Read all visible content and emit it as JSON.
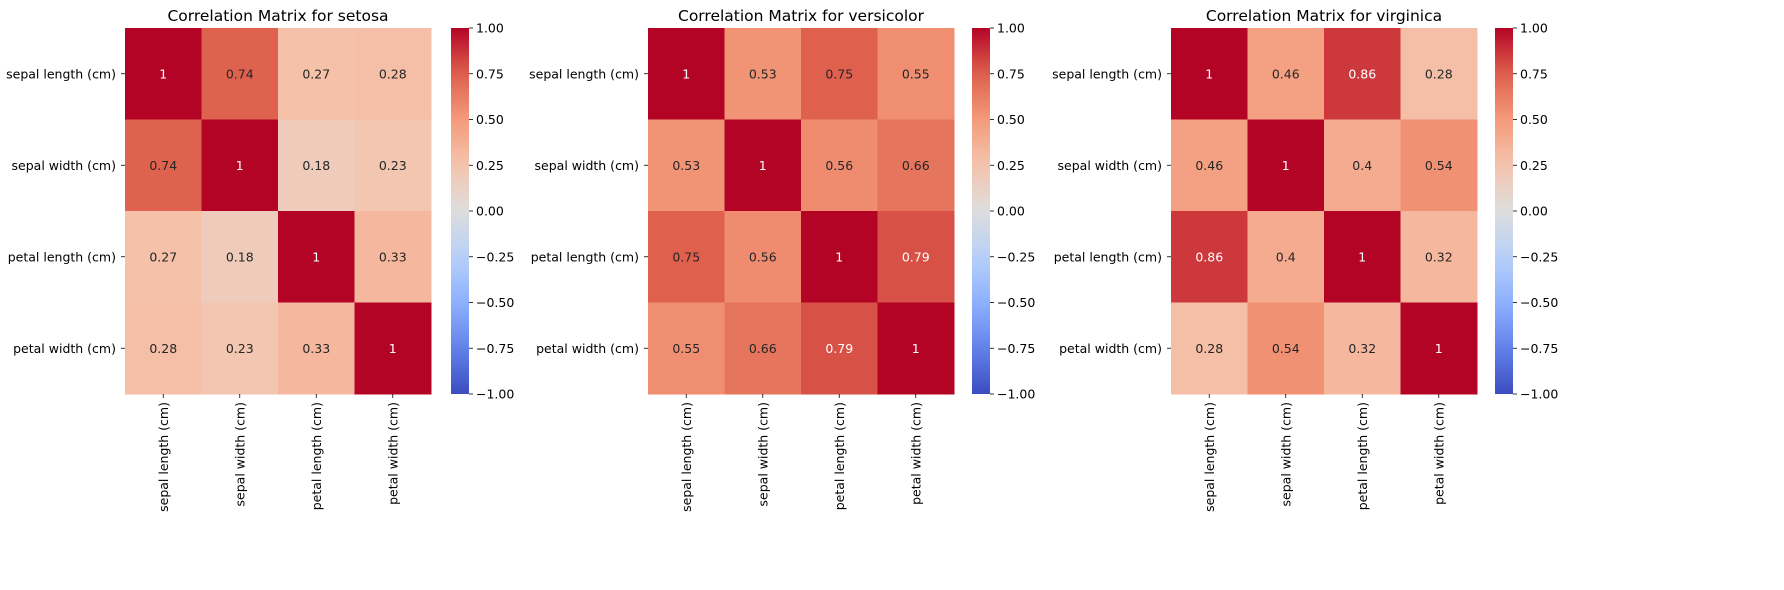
{
  "figure": {
    "colormap": "coolwarm",
    "background": "#ffffff"
  },
  "chart_data": [
    {
      "type": "heatmap",
      "title": "Correlation Matrix for setosa",
      "x_labels": [
        "sepal length (cm)",
        "sepal width (cm)",
        "petal length (cm)",
        "petal width (cm)"
      ],
      "y_labels": [
        "sepal length (cm)",
        "sepal width (cm)",
        "petal length (cm)",
        "petal width (cm)"
      ],
      "values": [
        [
          1.0,
          0.74,
          0.27,
          0.28
        ],
        [
          0.74,
          1.0,
          0.18,
          0.23
        ],
        [
          0.27,
          0.18,
          1.0,
          0.33
        ],
        [
          0.28,
          0.23,
          0.33,
          1.0
        ]
      ],
      "cell_labels": [
        [
          "1",
          "0.74",
          "0.27",
          "0.28"
        ],
        [
          "0.74",
          "1",
          "0.18",
          "0.23"
        ],
        [
          "0.27",
          "0.18",
          "1",
          "0.33"
        ],
        [
          "0.28",
          "0.23",
          "0.33",
          "1"
        ]
      ],
      "colorbar": {
        "range": [
          -1.0,
          1.0
        ],
        "ticks": [
          "1.00",
          "0.75",
          "0.50",
          "0.25",
          "0.00",
          "−0.25",
          "−0.50",
          "−0.75",
          "−1.00"
        ]
      }
    },
    {
      "type": "heatmap",
      "title": "Correlation Matrix for versicolor",
      "x_labels": [
        "sepal length (cm)",
        "sepal width (cm)",
        "petal length (cm)",
        "petal width (cm)"
      ],
      "y_labels": [
        "sepal length (cm)",
        "sepal width (cm)",
        "petal length (cm)",
        "petal width (cm)"
      ],
      "values": [
        [
          1.0,
          0.53,
          0.75,
          0.55
        ],
        [
          0.53,
          1.0,
          0.56,
          0.66
        ],
        [
          0.75,
          0.56,
          1.0,
          0.79
        ],
        [
          0.55,
          0.66,
          0.79,
          1.0
        ]
      ],
      "cell_labels": [
        [
          "1",
          "0.53",
          "0.75",
          "0.55"
        ],
        [
          "0.53",
          "1",
          "0.56",
          "0.66"
        ],
        [
          "0.75",
          "0.56",
          "1",
          "0.79"
        ],
        [
          "0.55",
          "0.66",
          "0.79",
          "1"
        ]
      ],
      "colorbar": {
        "range": [
          -1.0,
          1.0
        ],
        "ticks": [
          "1.00",
          "0.75",
          "0.50",
          "0.25",
          "0.00",
          "−0.25",
          "−0.50",
          "−0.75",
          "−1.00"
        ]
      }
    },
    {
      "type": "heatmap",
      "title": "Correlation Matrix for virginica",
      "x_labels": [
        "sepal length (cm)",
        "sepal width (cm)",
        "petal length (cm)",
        "petal width (cm)"
      ],
      "y_labels": [
        "sepal length (cm)",
        "sepal width (cm)",
        "petal length (cm)",
        "petal width (cm)"
      ],
      "values": [
        [
          1.0,
          0.46,
          0.86,
          0.28
        ],
        [
          0.46,
          1.0,
          0.4,
          0.54
        ],
        [
          0.86,
          0.4,
          1.0,
          0.32
        ],
        [
          0.28,
          0.54,
          0.32,
          1.0
        ]
      ],
      "cell_labels": [
        [
          "1",
          "0.46",
          "0.86",
          "0.28"
        ],
        [
          "0.46",
          "1",
          "0.4",
          "0.54"
        ],
        [
          "0.86",
          "0.4",
          "1",
          "0.32"
        ],
        [
          "0.28",
          "0.54",
          "0.32",
          "1"
        ]
      ],
      "colorbar": {
        "range": [
          -1.0,
          1.0
        ],
        "ticks": [
          "1.00",
          "0.75",
          "0.50",
          "0.25",
          "0.00",
          "−0.25",
          "−0.50",
          "−0.75",
          "−1.00"
        ]
      }
    }
  ]
}
